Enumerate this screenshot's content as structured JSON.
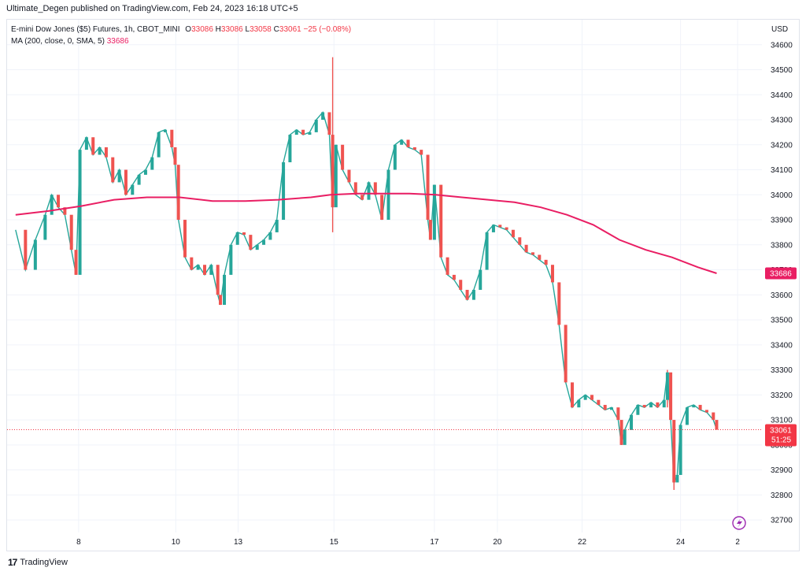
{
  "header": {
    "published": "Ultimate_Degen published on TradingView.com, Feb 24, 2023 16:18 UTC+5"
  },
  "legend": {
    "symbol": "E-mini Dow Jones ($5) Futures, 1h, CBOT_MINI",
    "open_label": "O",
    "open": "33086",
    "high_label": "H",
    "high": "33086",
    "low_label": "L",
    "low": "33058",
    "close_label": "C",
    "close": "33061",
    "change": "−25 (−0.08%)",
    "ma_label": "MA (200, close, 0, SMA, 5)",
    "ma_value": "33686"
  },
  "price_axis": {
    "currency": "USD",
    "last_price": "33061",
    "countdown": "51:25",
    "ma_badge": "33686"
  },
  "footer": {
    "brand": "TradingView",
    "brand_mark": "17"
  },
  "colors": {
    "up": "#26a69a",
    "down": "#ef5350",
    "ma": "#e91e63",
    "grid": "#f0f3fa",
    "last_price": "#f23645"
  },
  "chart_data": {
    "type": "line",
    "title": "E-mini Dow Jones ($5) Futures, 1h, CBOT_MINI",
    "xlabel": "",
    "ylabel": "",
    "ylim": [
      32650,
      34700
    ],
    "yticks": [
      32700,
      32800,
      32900,
      33000,
      33100,
      33200,
      33300,
      33400,
      33500,
      33600,
      33700,
      33800,
      33900,
      34000,
      34100,
      34200,
      34300,
      34400,
      34500,
      34600
    ],
    "x_ticks": [
      {
        "label": "8",
        "x": 9.6
      },
      {
        "label": "10",
        "x": 24.4
      },
      {
        "label": "13",
        "x": 33.9
      },
      {
        "label": "15",
        "x": 48.5
      },
      {
        "label": "17",
        "x": 63.8
      },
      {
        "label": "20",
        "x": 73.4
      },
      {
        "label": "22",
        "x": 86.3
      },
      {
        "label": "24",
        "x": 101.3
      },
      {
        "label": "2",
        "x": 110
      }
    ],
    "xlim": [
      -1.3,
      113.7
    ],
    "price_series": {
      "name": "price",
      "points": [
        [
          0,
          33860
        ],
        [
          1.5,
          33700
        ],
        [
          3,
          33820
        ],
        [
          4.5,
          33920
        ],
        [
          5.5,
          34000
        ],
        [
          6.5,
          33950
        ],
        [
          7.5,
          33920
        ],
        [
          8.5,
          33780
        ],
        [
          9.2,
          33680
        ],
        [
          9.8,
          34180
        ],
        [
          10.8,
          34230
        ],
        [
          11.8,
          34160
        ],
        [
          12.8,
          34190
        ],
        [
          13.8,
          34150
        ],
        [
          14.8,
          34050
        ],
        [
          15.8,
          34100
        ],
        [
          16.8,
          34000
        ],
        [
          17.8,
          34040
        ],
        [
          18.8,
          34080
        ],
        [
          19.8,
          34100
        ],
        [
          20.8,
          34150
        ],
        [
          21.8,
          34250
        ],
        [
          22.8,
          34260
        ],
        [
          23.8,
          34190
        ],
        [
          24.3,
          34120
        ],
        [
          24.8,
          33900
        ],
        [
          25.8,
          33750
        ],
        [
          26.8,
          33700
        ],
        [
          27.8,
          33720
        ],
        [
          28.8,
          33680
        ],
        [
          29.8,
          33720
        ],
        [
          30.8,
          33600
        ],
        [
          31.2,
          33560
        ],
        [
          31.8,
          33680
        ],
        [
          32.8,
          33800
        ],
        [
          33.8,
          33850
        ],
        [
          34.8,
          33840
        ],
        [
          35.8,
          33780
        ],
        [
          36.8,
          33800
        ],
        [
          37.8,
          33820
        ],
        [
          38.8,
          33850
        ],
        [
          39.8,
          33900
        ],
        [
          40.8,
          34130
        ],
        [
          41.8,
          34240
        ],
        [
          42.8,
          34260
        ],
        [
          43.8,
          34240
        ],
        [
          44.8,
          34250
        ],
        [
          45.8,
          34300
        ],
        [
          46.8,
          34330
        ],
        [
          47.8,
          34240
        ],
        [
          48.3,
          33950
        ],
        [
          48.8,
          34200
        ],
        [
          49.8,
          34100
        ],
        [
          50.8,
          34050
        ],
        [
          51.8,
          34000
        ],
        [
          52.8,
          33980
        ],
        [
          53.8,
          34050
        ],
        [
          54.8,
          34000
        ],
        [
          55.8,
          33900
        ],
        [
          56.8,
          34100
        ],
        [
          57.8,
          34200
        ],
        [
          58.8,
          34220
        ],
        [
          59.8,
          34190
        ],
        [
          60.8,
          34180
        ],
        [
          61.8,
          34160
        ],
        [
          62.8,
          33900
        ],
        [
          63.2,
          33820
        ],
        [
          63.8,
          34040
        ],
        [
          64.8,
          33750
        ],
        [
          65.8,
          33680
        ],
        [
          66.8,
          33660
        ],
        [
          67.8,
          33620
        ],
        [
          68.8,
          33580
        ],
        [
          69.8,
          33620
        ],
        [
          70.8,
          33700
        ],
        [
          71.8,
          33850
        ],
        [
          72.8,
          33880
        ],
        [
          73.8,
          33870
        ],
        [
          74.8,
          33860
        ],
        [
          75.8,
          33830
        ],
        [
          76.8,
          33800
        ],
        [
          77.8,
          33770
        ],
        [
          78.8,
          33760
        ],
        [
          79.8,
          33740
        ],
        [
          80.8,
          33720
        ],
        [
          81.8,
          33650
        ],
        [
          82.8,
          33480
        ],
        [
          83.8,
          33250
        ],
        [
          84.8,
          33150
        ],
        [
          85.8,
          33180
        ],
        [
          86.8,
          33200
        ],
        [
          87.8,
          33180
        ],
        [
          88.8,
          33160
        ],
        [
          89.8,
          33140
        ],
        [
          90.8,
          33150
        ],
        [
          91.8,
          33100
        ],
        [
          92.3,
          33000
        ],
        [
          92.8,
          33060
        ],
        [
          93.8,
          33120
        ],
        [
          94.8,
          33160
        ],
        [
          95.8,
          33150
        ],
        [
          96.8,
          33170
        ],
        [
          97.8,
          33150
        ],
        [
          98.8,
          33180
        ],
        [
          99.3,
          33290
        ],
        [
          99.8,
          33100
        ],
        [
          100.3,
          32850
        ],
        [
          100.8,
          32880
        ],
        [
          101.3,
          33080
        ],
        [
          102.3,
          33150
        ],
        [
          103.3,
          33160
        ],
        [
          104.3,
          33140
        ],
        [
          105.3,
          33130
        ],
        [
          106.3,
          33100
        ],
        [
          106.8,
          33061
        ]
      ]
    },
    "ma_series": {
      "name": "MA (200, close, 0, SMA, 5)",
      "points": [
        [
          0,
          33920
        ],
        [
          5,
          33935
        ],
        [
          10,
          33955
        ],
        [
          15,
          33980
        ],
        [
          20,
          33990
        ],
        [
          25,
          33990
        ],
        [
          30,
          33975
        ],
        [
          35,
          33975
        ],
        [
          40,
          33980
        ],
        [
          45,
          33990
        ],
        [
          48,
          34000
        ],
        [
          52,
          34005
        ],
        [
          56,
          34005
        ],
        [
          60,
          34005
        ],
        [
          64,
          34000
        ],
        [
          68,
          33990
        ],
        [
          72,
          33980
        ],
        [
          76,
          33970
        ],
        [
          80,
          33950
        ],
        [
          84,
          33920
        ],
        [
          88,
          33880
        ],
        [
          92,
          33820
        ],
        [
          96,
          33780
        ],
        [
          100,
          33750
        ],
        [
          104,
          33710
        ],
        [
          106.8,
          33686
        ]
      ]
    },
    "wick_extremes": [
      {
        "x": 48.3,
        "high": 34550,
        "low": 33850
      },
      {
        "x": 100.3,
        "high": 32850,
        "low": 32820
      },
      {
        "x": 99.3,
        "high": 33300,
        "low": 33150
      }
    ]
  }
}
